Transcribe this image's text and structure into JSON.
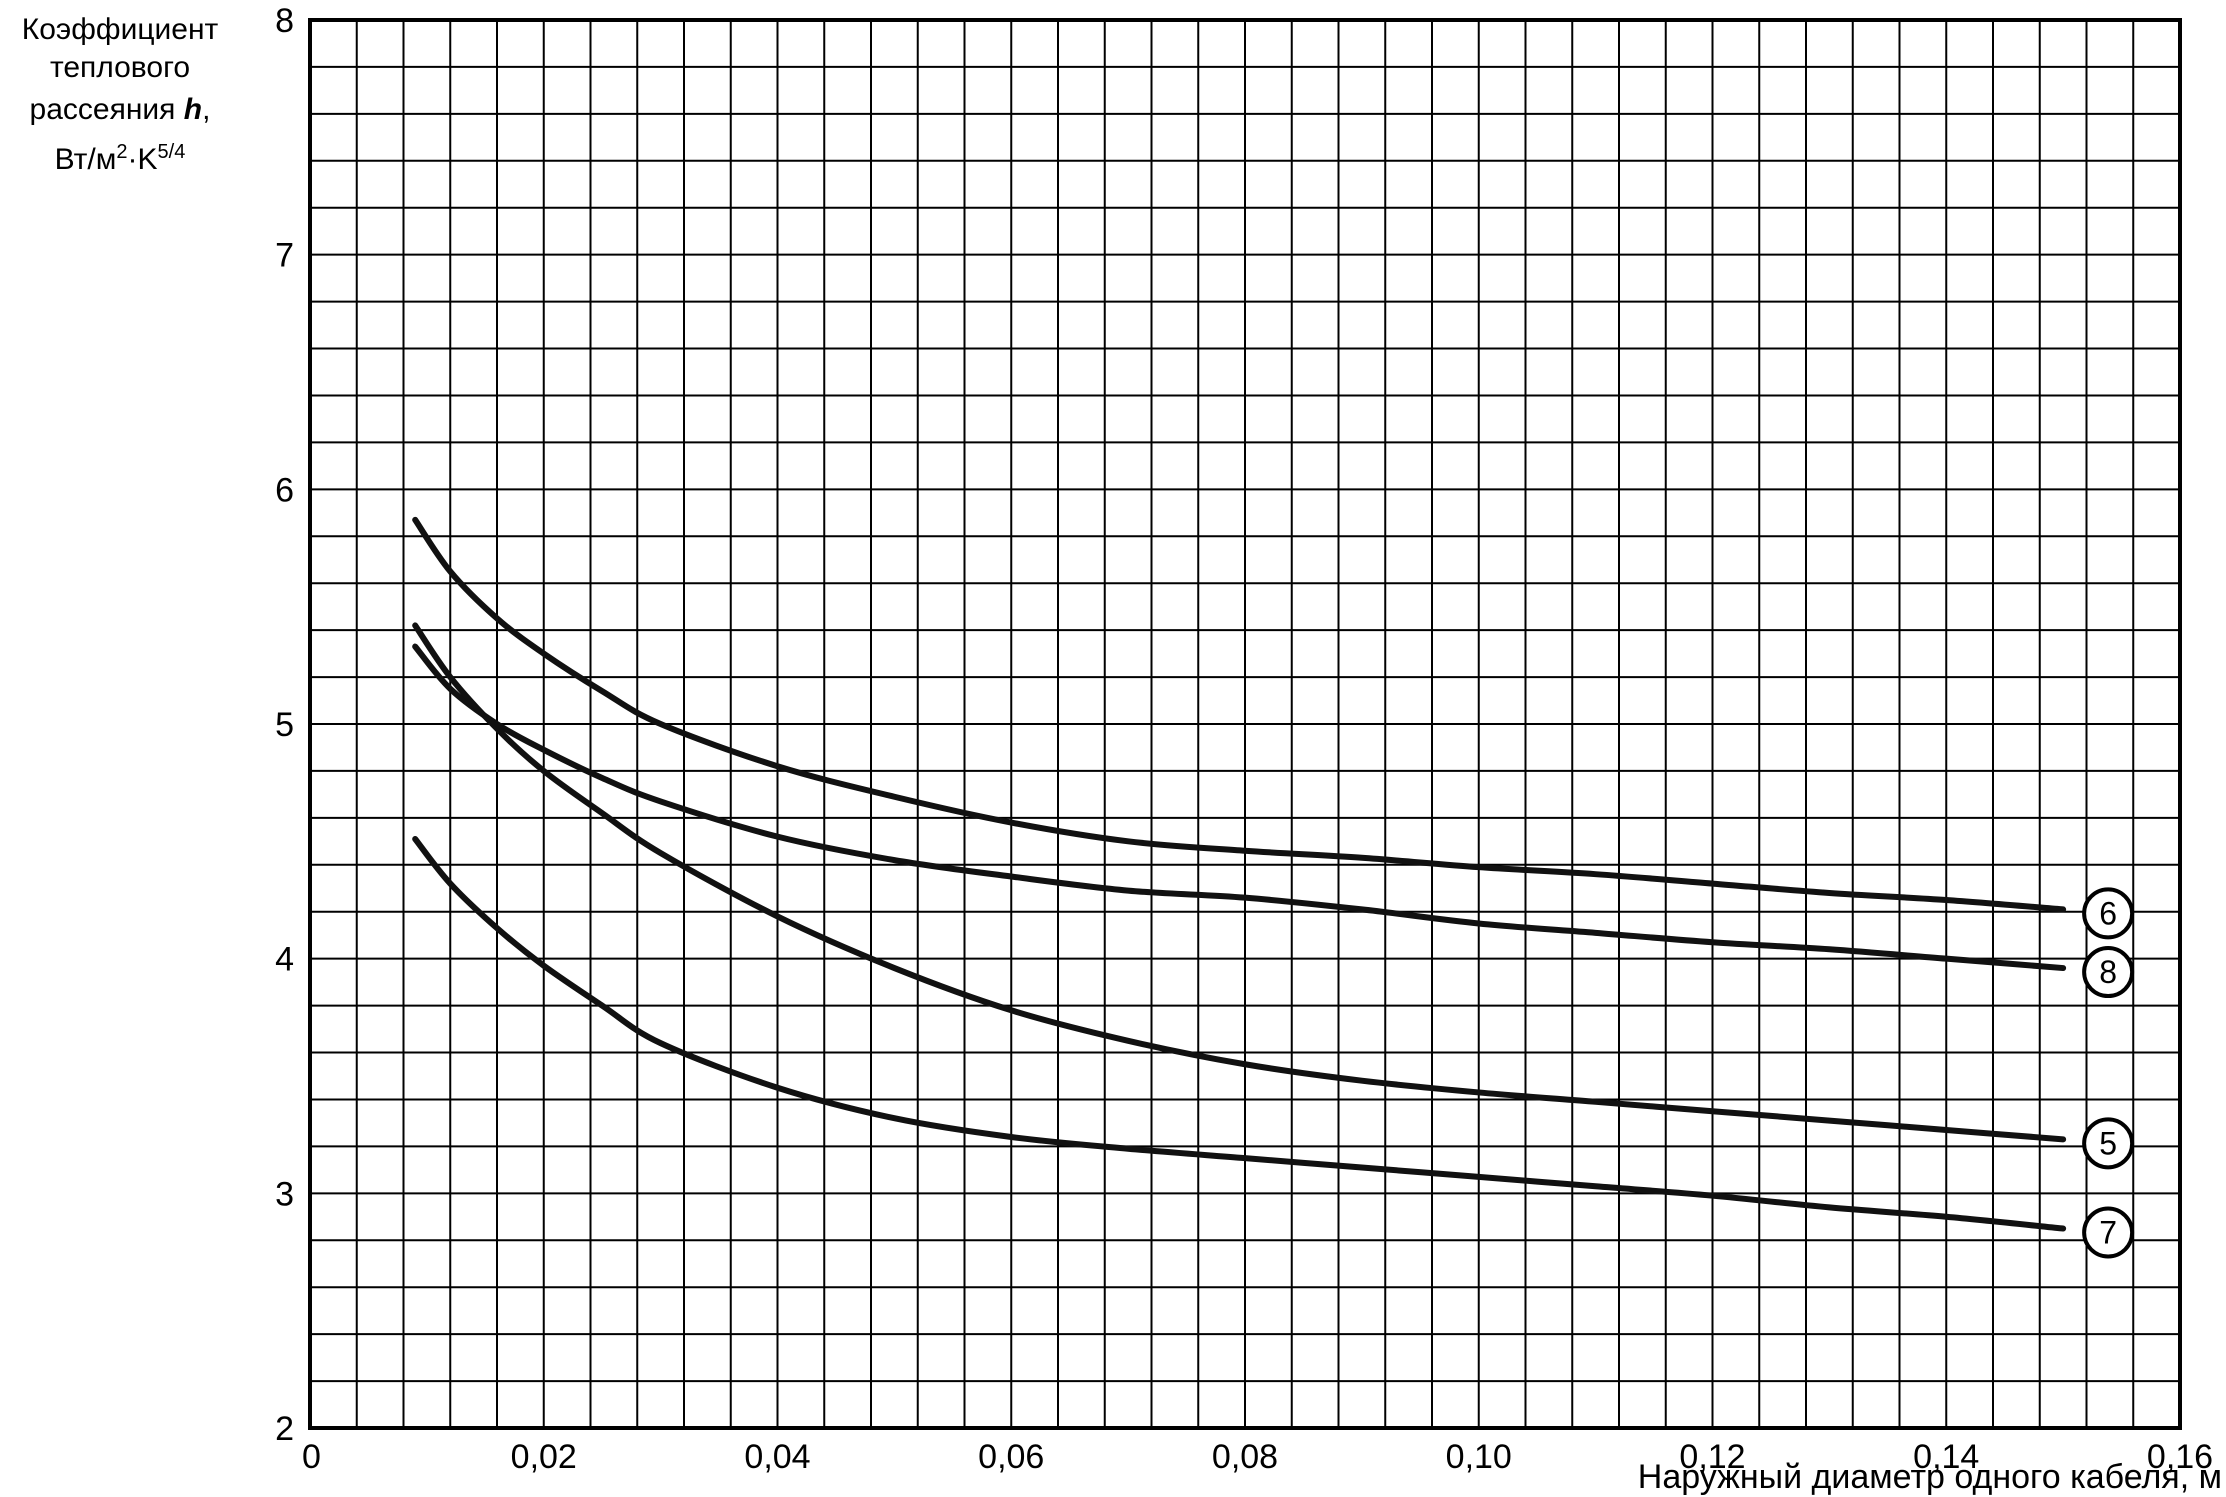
{
  "chart_data": {
    "type": "line",
    "ylabel_lines": [
      "Коэффициент",
      "теплового",
      "рассеяния h,",
      "Вт/м²·K⁵ᐟ⁴"
    ],
    "ylabel_parts": {
      "line3_text": "рассеяния ",
      "line3_var": "h",
      "line3_suffix": ",",
      "line4_unit": "Вт/м",
      "line4_exp1": "2",
      "line4_mid": "·K",
      "line4_exp2": "5/4"
    },
    "xlabel": "Наружный диаметр одного кабеля, м",
    "xlim": [
      0,
      0.16
    ],
    "ylim": [
      2,
      8
    ],
    "x_tick_labels": [
      "0",
      "0,02",
      "0,04",
      "0,06",
      "0,08",
      "0,10",
      "0,12",
      "0,14",
      "0,16"
    ],
    "x_tick_values": [
      0,
      0.02,
      0.04,
      0.06,
      0.08,
      0.1,
      0.12,
      0.14,
      0.16
    ],
    "y_tick_labels": [
      "2",
      "3",
      "4",
      "5",
      "6",
      "7",
      "8"
    ],
    "y_tick_values": [
      2,
      3,
      4,
      5,
      6,
      7,
      8
    ],
    "grid": true,
    "grid_x_step": 0.004,
    "grid_y_step": 0.2,
    "line_color": "#111111",
    "series": [
      {
        "name": "6",
        "x": [
          0.009,
          0.012,
          0.016,
          0.02,
          0.025,
          0.03,
          0.04,
          0.05,
          0.06,
          0.07,
          0.08,
          0.09,
          0.1,
          0.11,
          0.12,
          0.13,
          0.14,
          0.15
        ],
        "y": [
          5.87,
          5.65,
          5.45,
          5.3,
          5.14,
          5.0,
          4.82,
          4.69,
          4.58,
          4.5,
          4.46,
          4.43,
          4.39,
          4.36,
          4.32,
          4.28,
          4.25,
          4.21
        ]
      },
      {
        "name": "8",
        "x": [
          0.009,
          0.012,
          0.016,
          0.02,
          0.025,
          0.03,
          0.04,
          0.05,
          0.06,
          0.07,
          0.08,
          0.09,
          0.1,
          0.11,
          0.12,
          0.13,
          0.14,
          0.15
        ],
        "y": [
          5.33,
          5.15,
          5.0,
          4.89,
          4.77,
          4.67,
          4.52,
          4.42,
          4.35,
          4.29,
          4.26,
          4.21,
          4.15,
          4.11,
          4.07,
          4.04,
          4.0,
          3.96
        ]
      },
      {
        "name": "5",
        "x": [
          0.009,
          0.012,
          0.016,
          0.02,
          0.025,
          0.03,
          0.04,
          0.05,
          0.06,
          0.07,
          0.08,
          0.09,
          0.1,
          0.11,
          0.12,
          0.13,
          0.14,
          0.15
        ],
        "y": [
          5.42,
          5.2,
          4.98,
          4.8,
          4.62,
          4.45,
          4.18,
          3.96,
          3.78,
          3.65,
          3.55,
          3.48,
          3.43,
          3.39,
          3.35,
          3.31,
          3.27,
          3.23
        ]
      },
      {
        "name": "7",
        "x": [
          0.009,
          0.012,
          0.016,
          0.02,
          0.025,
          0.03,
          0.04,
          0.05,
          0.06,
          0.07,
          0.08,
          0.09,
          0.1,
          0.11,
          0.12,
          0.13,
          0.14,
          0.15
        ],
        "y": [
          4.51,
          4.32,
          4.13,
          3.97,
          3.8,
          3.64,
          3.45,
          3.32,
          3.24,
          3.19,
          3.15,
          3.11,
          3.07,
          3.03,
          2.99,
          2.94,
          2.9,
          2.85
        ]
      }
    ]
  }
}
